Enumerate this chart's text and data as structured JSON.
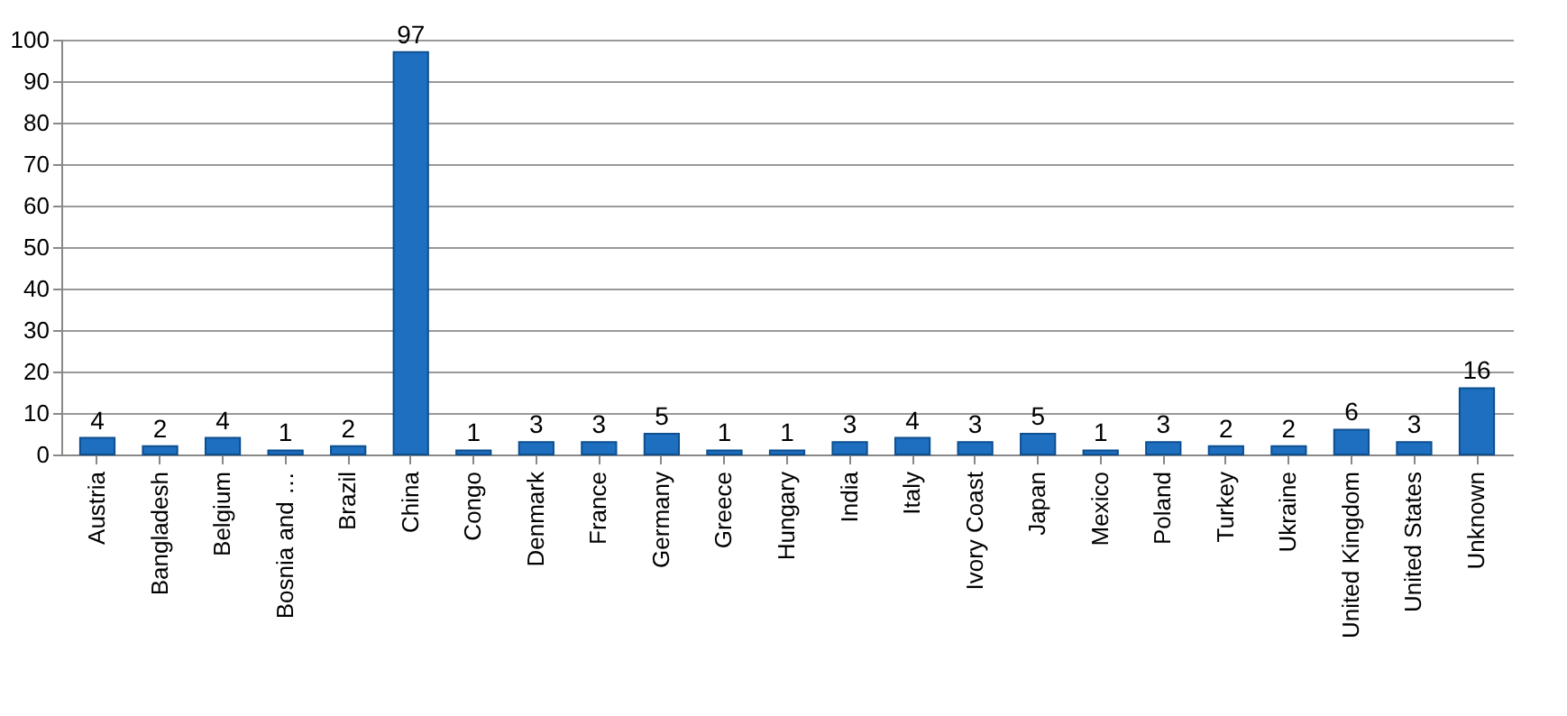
{
  "chart_data": {
    "type": "bar",
    "categories": [
      "Austria",
      "Bangladesh",
      "Belgium",
      "Bosnia and …",
      "Brazil",
      "China",
      "Congo",
      "Denmark",
      "France",
      "Germany",
      "Greece",
      "Hungary",
      "India",
      "Italy",
      "Ivory Coast",
      "Japan",
      "Mexico",
      "Poland",
      "Turkey",
      "Ukraine",
      "United Kingdom",
      "United States",
      "Unknown"
    ],
    "values": [
      4,
      2,
      4,
      1,
      2,
      97,
      1,
      3,
      3,
      5,
      1,
      1,
      3,
      4,
      3,
      5,
      1,
      3,
      2,
      2,
      6,
      3,
      16
    ],
    "color": "#1f6fc0",
    "ylim": [
      0,
      100
    ],
    "yticks": [
      0,
      10,
      20,
      30,
      40,
      50,
      60,
      70,
      80,
      90,
      100
    ],
    "grid": true,
    "data_labels": true
  }
}
